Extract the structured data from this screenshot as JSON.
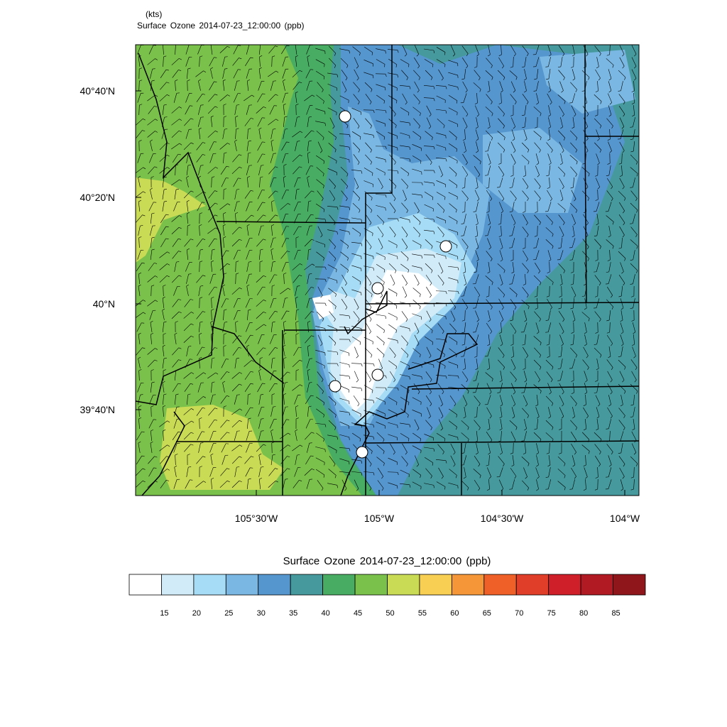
{
  "header": {
    "units": "(kts)",
    "title": "Surface Ozone   2014-07-23_12:00:00   (ppb)"
  },
  "chart_data": {
    "type": "heatmap",
    "title": "Surface Ozone   2014-07-23_12:00:00   (ppb)",
    "overlay": "wind barbs (kts)",
    "y_ticks": [
      "40°40'N",
      "40°20'N",
      "40°N",
      "39°40'N"
    ],
    "x_ticks": [
      "105°30'W",
      "105°W",
      "104°30'W",
      "104°W"
    ],
    "colorbar": {
      "title": "Surface Ozone   2014-07-23_12:00:00  (ppb)",
      "levels": [
        "15",
        "20",
        "25",
        "30",
        "35",
        "40",
        "45",
        "50",
        "55",
        "60",
        "65",
        "70",
        "75",
        "80",
        "85"
      ],
      "colors": [
        "#ffffff",
        "#d1ecf8",
        "#a6dcf5",
        "#7ab8e3",
        "#5696cf",
        "#46999c",
        "#48ad62",
        "#79c14a",
        "#c9da55",
        "#f8cf52",
        "#f59738",
        "#ef6028",
        "#e03e28",
        "#cf1f28",
        "#b11a22",
        "#8f161b"
      ]
    }
  }
}
